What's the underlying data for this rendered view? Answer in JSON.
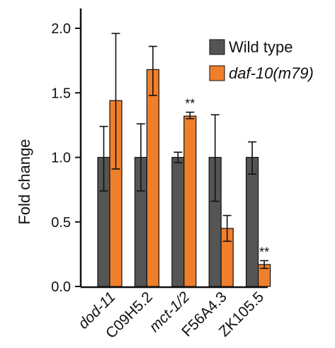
{
  "chart_data": {
    "type": "bar",
    "ylabel": "Fold change",
    "ylim": [
      0,
      2.0
    ],
    "yticks": [
      "0.0",
      "0.5",
      "1.0",
      "1.5",
      "2.0"
    ],
    "categories": [
      {
        "label": "dod-11",
        "italic": true
      },
      {
        "label": "C09H5.2",
        "italic": false
      },
      {
        "label": "mct-1/2",
        "italic": true
      },
      {
        "label": "F56A4.3",
        "italic": false
      },
      {
        "label": "ZK105.5",
        "italic": false
      }
    ],
    "series": [
      {
        "name": "Wild type",
        "italic": false,
        "color": "#555555",
        "values": [
          1.0,
          1.0,
          1.0,
          1.0,
          1.0
        ],
        "err_low": [
          0.74,
          0.74,
          0.96,
          0.66,
          0.87
        ],
        "err_high": [
          1.24,
          1.26,
          1.04,
          1.33,
          1.12
        ]
      },
      {
        "name": "daf-10(m79)",
        "italic": true,
        "color": "#F07F2C",
        "values": [
          1.44,
          1.68,
          1.32,
          0.45,
          0.17
        ],
        "err_low": [
          0.91,
          1.48,
          1.3,
          0.35,
          0.14
        ],
        "err_high": [
          1.96,
          1.86,
          1.35,
          0.55,
          0.2
        ]
      }
    ],
    "annotations": [
      {
        "text": "**",
        "category_index": 2,
        "series_index": 1
      },
      {
        "text": "**",
        "category_index": 4,
        "series_index": 1
      }
    ],
    "legend_position": "top-right",
    "grid": false
  }
}
